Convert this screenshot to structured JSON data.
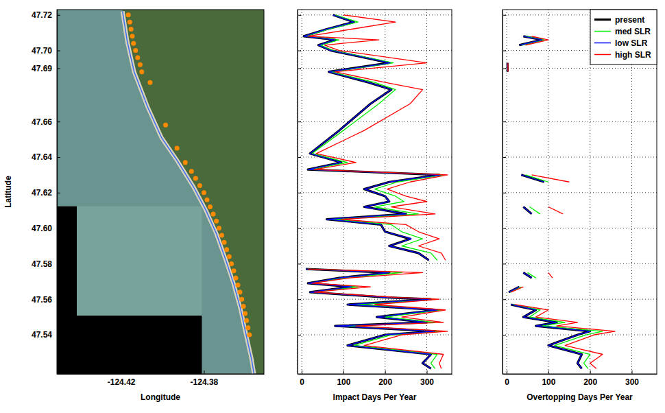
{
  "chart_data": [
    {
      "type": "map",
      "xlabel": "Longitude",
      "ylabel": "Latitude",
      "xlim": [
        -124.451,
        -124.351
      ],
      "ylim": [
        47.518,
        47.723
      ],
      "xticks": [
        -124.42,
        -124.38
      ],
      "yticks": [
        47.54,
        47.56,
        47.58,
        {
          "value": 47.6,
          "label": "47.60"
        },
        47.62,
        47.64,
        47.66,
        47.69,
        {
          "value": 47.7,
          "label": "47.70"
        },
        47.72
      ],
      "series": [
        {
          "type": "line",
          "color": "#3b6cf2",
          "line_style": "solid",
          "x": [
            -124.4193,
            -124.417,
            -124.4137,
            -124.4071,
            -124.4005,
            -124.3929,
            -124.3849,
            -124.379,
            -124.374,
            -124.3697,
            -124.3657,
            -124.3624,
            -124.3598,
            -124.3571,
            -124.3558
          ],
          "values": [
            47.722,
            47.705,
            47.688,
            47.668,
            47.651,
            47.638,
            47.623,
            47.61,
            47.597,
            47.583,
            47.569,
            47.555,
            47.541,
            47.527,
            47.518
          ]
        },
        {
          "type": "scatter",
          "color": "#ff8a00",
          "marker": "circle",
          "x": [
            -124.4165,
            -124.4158,
            -124.4152,
            -124.4146,
            -124.414,
            -124.413,
            -124.412,
            -124.4108,
            -124.41,
            -124.406,
            -124.3985,
            -124.393,
            -124.389,
            -124.386,
            -124.384,
            -124.382,
            -124.38,
            -124.3785,
            -124.377,
            -124.3755,
            -124.374,
            -124.3727,
            -124.3714,
            -124.3702,
            -124.369,
            -124.3678,
            -124.3667,
            -124.3656,
            -124.3646,
            -124.3636,
            -124.3626,
            -124.3617,
            -124.3609,
            -124.3601,
            -124.3594,
            -124.3587,
            -124.358
          ],
          "values": [
            47.72,
            47.716,
            47.712,
            47.708,
            47.704,
            47.7,
            47.696,
            47.692,
            47.688,
            47.682,
            47.658,
            47.645,
            47.637,
            47.632,
            47.628,
            47.624,
            47.62,
            47.616,
            47.612,
            47.608,
            47.604,
            47.6,
            47.596,
            47.592,
            47.588,
            47.584,
            47.58,
            47.576,
            47.572,
            47.568,
            47.564,
            47.56,
            47.556,
            47.552,
            47.548,
            47.544,
            47.54
          ]
        }
      ]
    },
    {
      "type": "line",
      "orientation": "horizontal",
      "xlabel": "Impact Days Per Year",
      "grid": true,
      "tick_labels": "x",
      "xlim": [
        -10,
        360
      ],
      "ylim": [
        47.518,
        47.723
      ],
      "xticks": [
        0,
        100,
        200,
        300
      ],
      "yticks": [
        47.54,
        47.56,
        47.58,
        47.6,
        47.62,
        47.64,
        47.66,
        47.69,
        47.7,
        47.72
      ],
      "y": [
        47.72,
        47.716,
        47.712,
        47.708,
        47.706,
        47.703,
        47.7,
        47.693,
        47.688,
        47.682,
        47.678,
        47.67,
        47.655,
        47.642,
        47.637,
        47.633,
        47.63,
        47.626,
        47.622,
        47.618,
        47.615,
        47.612,
        47.608,
        47.605,
        47.602,
        47.598,
        47.594,
        47.59,
        47.586,
        47.582,
        47.579,
        47.577,
        47.575,
        47.572,
        47.569,
        47.567,
        47.564,
        47.561,
        47.56,
        47.557,
        47.554,
        47.55,
        47.547,
        47.545,
        47.542,
        47.54,
        47.534,
        47.529,
        47.524,
        47.521
      ],
      "series": [
        {
          "name": "present",
          "color": "#000000",
          "values": [
            75,
            125,
            60,
            5,
            80,
            40,
            70,
            210,
            65,
            160,
            215,
            165,
            90,
            20,
            95,
            15,
            330,
            210,
            150,
            200,
            210,
            150,
            250,
            60,
            190,
            200,
            260,
            210,
            280,
            305,
            null,
            10,
            210,
            90,
            15,
            120,
            20,
            205,
            310,
            110,
            325,
            180,
            300,
            80,
            320,
            200,
            110,
            310,
            290,
            310
          ]
        },
        {
          "name": "med SLR",
          "color": "#00ee00",
          "values": [
            80,
            135,
            65,
            10,
            90,
            45,
            75,
            220,
            70,
            175,
            225,
            185,
            100,
            25,
            110,
            20,
            340,
            230,
            175,
            225,
            245,
            175,
            280,
            75,
            215,
            240,
            290,
            240,
            310,
            325,
            null,
            12,
            240,
            100,
            20,
            135,
            25,
            215,
            320,
            130,
            335,
            200,
            320,
            100,
            335,
            215,
            125,
            325,
            310,
            320
          ]
        },
        {
          "name": "low SLR",
          "color": "#0000ff",
          "values": [
            75,
            125,
            60,
            5,
            80,
            40,
            70,
            212,
            65,
            160,
            215,
            165,
            90,
            20,
            95,
            15,
            333,
            210,
            150,
            200,
            210,
            150,
            250,
            60,
            190,
            200,
            263,
            210,
            280,
            305,
            null,
            10,
            210,
            90,
            15,
            120,
            20,
            205,
            310,
            110,
            325,
            180,
            300,
            80,
            320,
            200,
            110,
            310,
            290,
            310
          ]
        },
        {
          "name": "high SLR",
          "color": "#ff0000",
          "values": [
            100,
            225,
            120,
            15,
            185,
            55,
            90,
            300,
            80,
            200,
            290,
            260,
            150,
            35,
            130,
            30,
            350,
            260,
            205,
            250,
            300,
            215,
            320,
            95,
            250,
            280,
            330,
            280,
            335,
            345,
            null,
            15,
            290,
            115,
            25,
            165,
            30,
            230,
            330,
            175,
            345,
            240,
            340,
            130,
            350,
            240,
            150,
            340,
            330,
            335
          ]
        }
      ]
    },
    {
      "type": "line",
      "orientation": "horizontal",
      "xlabel": "Overtopping Days Per Year",
      "grid": true,
      "tick_labels": "x",
      "legend": "upper right",
      "xlim": [
        -10,
        360
      ],
      "ylim": [
        47.518,
        47.723
      ],
      "xticks": [
        0,
        100,
        200,
        300
      ],
      "yticks": [
        47.54,
        47.56,
        47.58,
        47.6,
        47.62,
        47.64,
        47.66,
        47.69,
        47.7,
        47.72
      ],
      "y": [
        47.72,
        47.716,
        47.712,
        47.708,
        47.706,
        47.703,
        47.7,
        47.693,
        47.688,
        47.682,
        47.678,
        47.67,
        47.655,
        47.642,
        47.637,
        47.633,
        47.63,
        47.626,
        47.622,
        47.618,
        47.615,
        47.612,
        47.608,
        47.605,
        47.602,
        47.598,
        47.594,
        47.59,
        47.586,
        47.582,
        47.579,
        47.577,
        47.575,
        47.572,
        47.569,
        47.567,
        47.564,
        47.561,
        47.56,
        47.557,
        47.554,
        47.55,
        47.547,
        47.545,
        47.542,
        47.54,
        47.534,
        47.529,
        47.524,
        47.521
      ],
      "series": [
        {
          "name": "present",
          "color": "#000000",
          "values": [
            null,
            null,
            null,
            40,
            85,
            30,
            null,
            2,
            2,
            null,
            null,
            null,
            null,
            null,
            null,
            null,
            35,
            90,
            null,
            null,
            null,
            40,
            60,
            null,
            null,
            null,
            null,
            null,
            null,
            null,
            null,
            null,
            40,
            60,
            null,
            30,
            5,
            null,
            null,
            10,
            70,
            40,
            120,
            70,
            200,
            170,
            100,
            180,
            170,
            180
          ]
        },
        {
          "name": "med SLR",
          "color": "#00ee00",
          "values": [
            null,
            null,
            null,
            45,
            90,
            35,
            null,
            2,
            2,
            null,
            null,
            null,
            null,
            null,
            null,
            null,
            45,
            100,
            null,
            null,
            null,
            55,
            80,
            null,
            null,
            null,
            null,
            null,
            null,
            null,
            null,
            null,
            50,
            70,
            null,
            35,
            8,
            null,
            null,
            15,
            80,
            55,
            140,
            85,
            230,
            190,
            115,
            200,
            185,
            195
          ]
        },
        {
          "name": "low SLR",
          "color": "#0000ff",
          "values": [
            null,
            null,
            null,
            40,
            85,
            30,
            null,
            2,
            2,
            null,
            null,
            null,
            null,
            null,
            null,
            null,
            35,
            90,
            null,
            null,
            null,
            40,
            60,
            null,
            null,
            null,
            null,
            null,
            null,
            null,
            null,
            null,
            40,
            60,
            null,
            30,
            5,
            null,
            null,
            10,
            70,
            40,
            120,
            70,
            200,
            170,
            100,
            180,
            170,
            180
          ]
        },
        {
          "name": "high SLR",
          "color": "#ff0000",
          "values": [
            null,
            null,
            null,
            60,
            100,
            45,
            null,
            3,
            3,
            null,
            null,
            null,
            null,
            null,
            null,
            null,
            60,
            150,
            null,
            null,
            null,
            100,
            135,
            null,
            null,
            null,
            null,
            null,
            null,
            null,
            null,
            null,
            100,
            110,
            null,
            40,
            10,
            null,
            null,
            20,
            100,
            70,
            170,
            120,
            260,
            210,
            140,
            230,
            200,
            215
          ]
        }
      ]
    }
  ]
}
